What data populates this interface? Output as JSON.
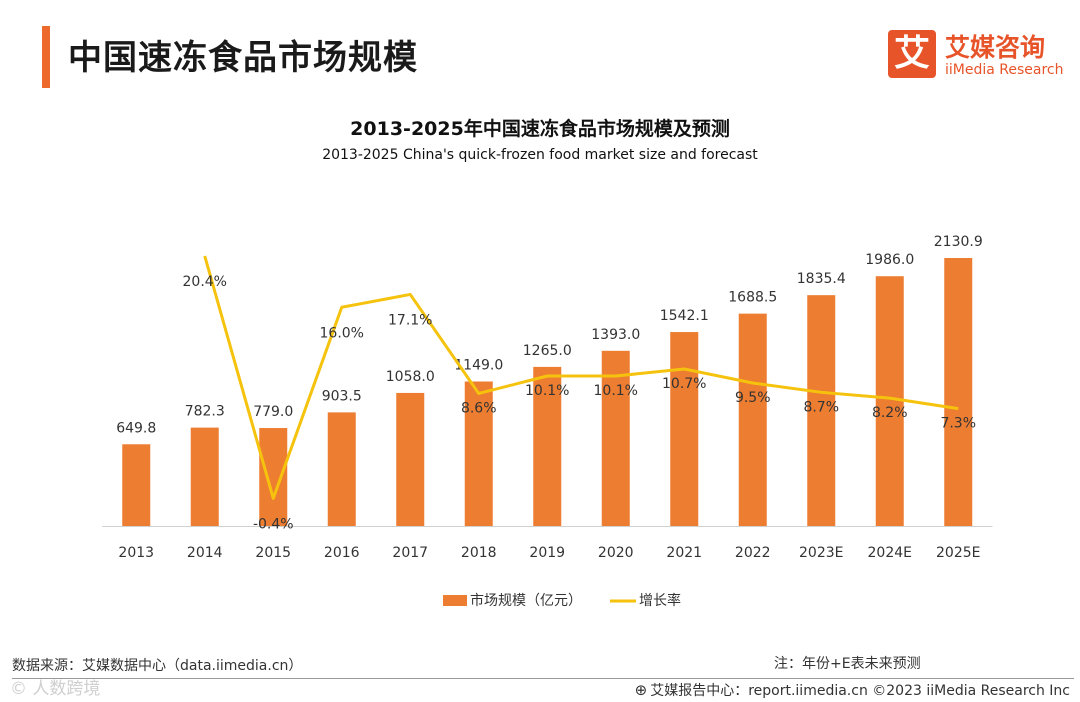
{
  "page_title": "中国速冻食品市场规模",
  "logo": {
    "mark": "艾",
    "name_cn": "艾媒咨询",
    "name_en": "iiMedia Research"
  },
  "footer": {
    "source": "数据来源：艾媒数据中心（data.iimedia.cn）",
    "note": "注：年份+E表未来预测",
    "report": "艾媒报告中心：report.iimedia.cn   ©2023  iiMedia Research  Inc",
    "watermark": "©  人数跨境"
  },
  "colors": {
    "bar": "#ed7d31",
    "line": "#f5c30d",
    "accent": "#ee6a2c"
  },
  "chart_data": {
    "type": "bar",
    "title": "2013-2025年中国速冻食品市场规模及预测",
    "subtitle": "2013-2025 China's quick-frozen food market size and forecast",
    "categories": [
      "2013",
      "2014",
      "2015",
      "2016",
      "2017",
      "2018",
      "2019",
      "2020",
      "2021",
      "2022",
      "2023E",
      "2024E",
      "2025E"
    ],
    "series": [
      {
        "name": "市场规模（亿元）",
        "type": "bar",
        "values": [
          649.8,
          782.3,
          779.0,
          903.5,
          1058.0,
          1149.0,
          1265.0,
          1393.0,
          1542.1,
          1688.5,
          1835.4,
          1986.0,
          2130.9
        ],
        "labels": [
          "649.8",
          "782.3",
          "779.0",
          "903.5",
          "1058.0",
          "1149.0",
          "1265.0",
          "1393.0",
          "1542.1",
          "1688.5",
          "1835.4",
          "1986.0",
          "2130.9"
        ]
      },
      {
        "name": "增长率",
        "type": "line",
        "values": [
          null,
          20.4,
          -0.4,
          16.0,
          17.1,
          8.6,
          10.1,
          10.1,
          10.7,
          9.5,
          8.7,
          8.2,
          7.3
        ],
        "labels": [
          "",
          "20.4%",
          "-0.4%",
          "16.0%",
          "17.1%",
          "8.6%",
          "10.1%",
          "10.1%",
          "10.7%",
          "9.5%",
          "8.7%",
          "8.2%",
          "7.3%"
        ]
      }
    ],
    "legend_position": "bottom",
    "grid": false
  }
}
